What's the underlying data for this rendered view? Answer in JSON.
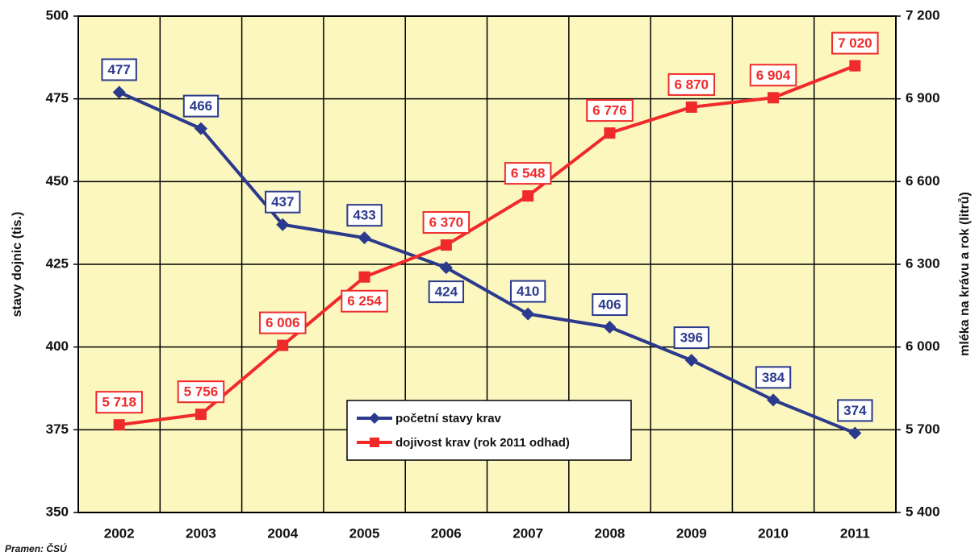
{
  "chart_data": {
    "type": "line",
    "categories": [
      "2002",
      "2003",
      "2004",
      "2005",
      "2006",
      "2007",
      "2008",
      "2009",
      "2010",
      "2011"
    ],
    "series": [
      {
        "name": "početní stavy krav",
        "color": "#2b3a8c",
        "values": [
          477,
          466,
          437,
          433,
          424,
          410,
          406,
          396,
          384,
          374
        ]
      },
      {
        "name": "dojivost krav (rok 2011 odhad)",
        "color": "#f02a2a",
        "axis": "y2",
        "values": [
          5718,
          5756,
          6006,
          6254,
          6370,
          6548,
          6776,
          6870,
          6904,
          7020
        ],
        "value_labels": [
          "5 718",
          "5 756",
          "6 006",
          "6 254",
          "6 370",
          "6 548",
          "6 776",
          "6 870",
          "6 904",
          "7 020"
        ]
      }
    ],
    "ylabel": "stavy dojnic (tis.)",
    "y2label": "mléka na krávu a rok (litrů)",
    "ylim": [
      350,
      500
    ],
    "yticks": [
      350,
      375,
      400,
      425,
      450,
      475,
      500
    ],
    "y2lim": [
      5400,
      7200
    ],
    "y2ticks": [
      {
        "value": 5400,
        "label": "5 400"
      },
      {
        "value": 5700,
        "label": "5 700"
      },
      {
        "value": 6000,
        "label": "6 000"
      },
      {
        "value": 6300,
        "label": "6 300"
      },
      {
        "value": 6600,
        "label": "6 600"
      },
      {
        "value": 6900,
        "label": "6 900"
      },
      {
        "value": 7200,
        "label": "7 200"
      }
    ],
    "grid": true,
    "legend": "lower center",
    "source": "Pramen: ČSÚ"
  }
}
